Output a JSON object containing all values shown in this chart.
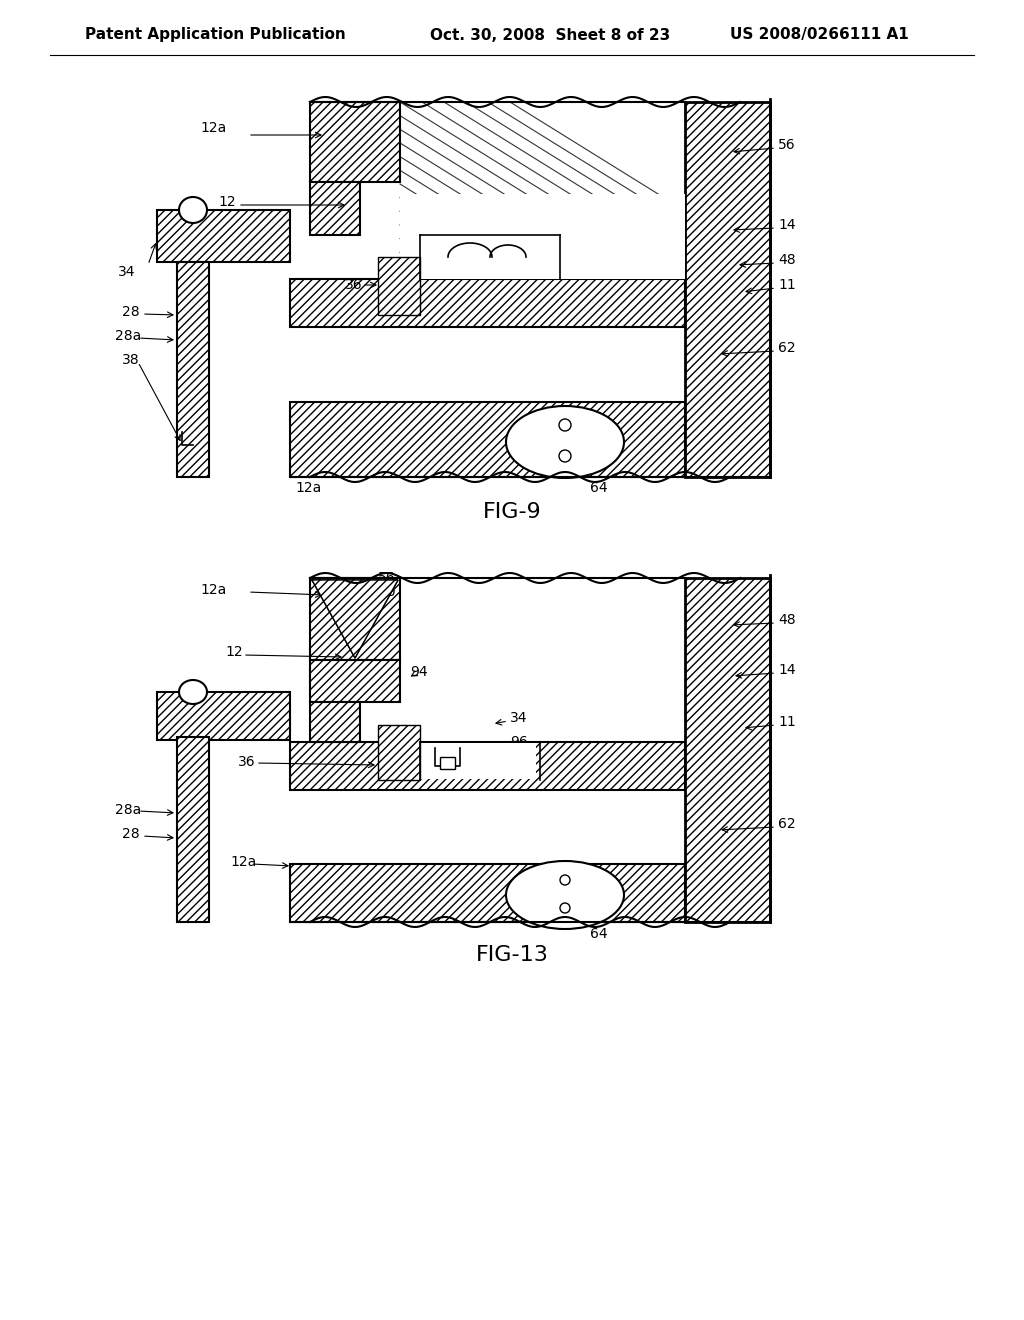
{
  "page_title_left": "Patent Application Publication",
  "page_title_mid": "Oct. 30, 2008  Sheet 8 of 23",
  "page_title_right": "US 2008/0266111 A1",
  "fig9_label": "FIG-9",
  "fig13_label": "FIG-13",
  "bg_color": "#ffffff",
  "line_color": "#000000",
  "title_fontsize": 11,
  "label_fontsize": 10,
  "fig_label_fontsize": 16
}
